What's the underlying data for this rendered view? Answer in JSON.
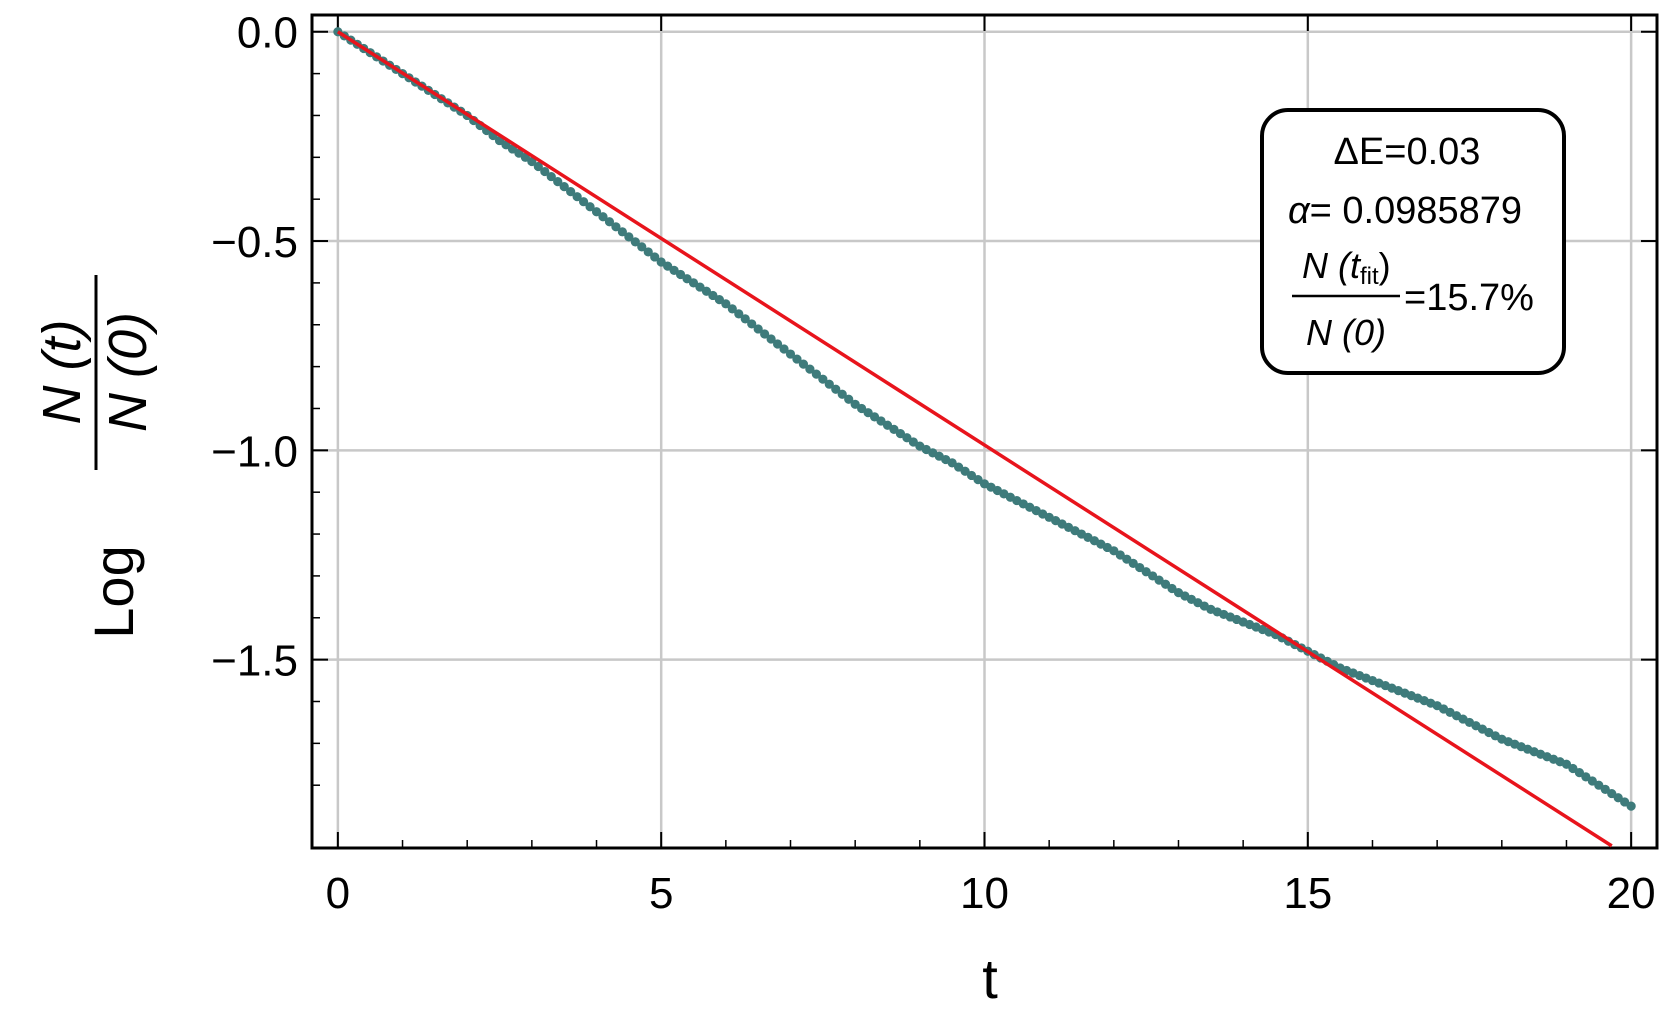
{
  "chart_data": {
    "type": "line",
    "xlabel": "t",
    "ylabel": {
      "prefix": "Log",
      "numerator": "N (t)",
      "denominator": "N (0)"
    },
    "xlim": [
      -0.4,
      20.4
    ],
    "ylim": [
      -1.95,
      0.04
    ],
    "grid": true,
    "x_ticks": [
      0,
      5,
      10,
      15,
      20
    ],
    "x_tick_labels": [
      "0",
      "5",
      "10",
      "15",
      "20"
    ],
    "y_ticks": [
      0.0,
      -0.5,
      -1.0,
      -1.5
    ],
    "y_tick_labels": [
      "0.0",
      "−0.5",
      "−1.0",
      "−1.5"
    ],
    "series": [
      {
        "kind": "points",
        "color": "#3e7b7b",
        "x": [
          0,
          0.5,
          1,
          1.5,
          2,
          2.5,
          3,
          3.5,
          4,
          4.5,
          5,
          5.5,
          6,
          6.5,
          7,
          7.5,
          8,
          8.5,
          9,
          9.5,
          10,
          10.5,
          11,
          11.5,
          12,
          12.5,
          13,
          13.5,
          14,
          14.5,
          15,
          15.5,
          16,
          16.5,
          17,
          17.5,
          18,
          18.5,
          19,
          19.5,
          20
        ],
        "y": [
          0,
          -0.05,
          -0.1,
          -0.15,
          -0.2,
          -0.26,
          -0.31,
          -0.37,
          -0.43,
          -0.49,
          -0.55,
          -0.6,
          -0.65,
          -0.71,
          -0.77,
          -0.83,
          -0.89,
          -0.94,
          -0.99,
          -1.03,
          -1.08,
          -1.12,
          -1.16,
          -1.2,
          -1.24,
          -1.29,
          -1.34,
          -1.38,
          -1.41,
          -1.44,
          -1.48,
          -1.52,
          -1.55,
          -1.58,
          -1.61,
          -1.65,
          -1.69,
          -1.72,
          -1.75,
          -1.8,
          -1.85
        ]
      },
      {
        "kind": "fit-line",
        "color": "#e8141c",
        "x": [
          0,
          19.7
        ],
        "y": [
          0,
          -1.945
        ]
      }
    ],
    "annotation": {
      "line1": "ΔE=0.03",
      "alpha_symbol": "α",
      "alpha_value": "= 0.0985879",
      "frac_numerator_a": "N (t",
      "frac_numerator_sub": "fit",
      "frac_numerator_b": ")",
      "frac_denominator": "N (0)",
      "frac_value": "=15.7%"
    }
  }
}
